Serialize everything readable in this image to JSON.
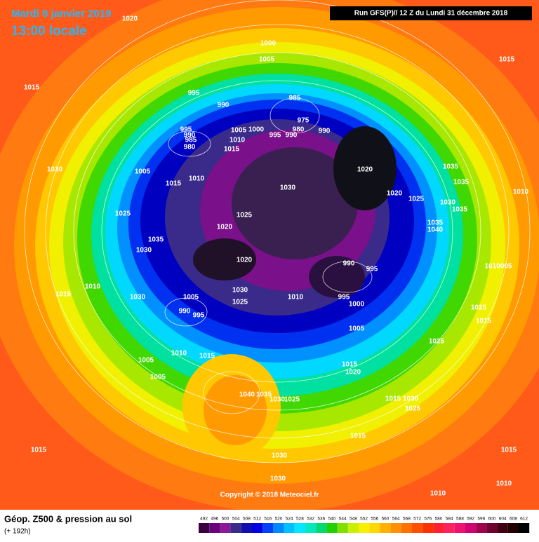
{
  "header": {
    "date": "Mardi 8 janvier 2019",
    "time": "13:00 locale",
    "run": "Run GFS(P)// 12 Z du Lundi 31 décembre 2018"
  },
  "footer": {
    "title": "Géop. Z500 & pression au sol",
    "lead": "(+ 192h)",
    "copyright": "Copyright © 2018 Meteociel.fr"
  },
  "legend": {
    "values": [
      492,
      496,
      500,
      504,
      508,
      512,
      516,
      520,
      524,
      528,
      532,
      536,
      540,
      544,
      548,
      552,
      556,
      560,
      564,
      568,
      572,
      576,
      580,
      584,
      588,
      592,
      596,
      600,
      604,
      608,
      612
    ]
  },
  "isobar_labels": [
    "1020",
    "1000",
    "1005",
    "1015",
    "1015",
    "995",
    "985",
    "990",
    "975",
    "980",
    "990",
    "995",
    "990",
    "985",
    "980",
    "1005",
    "1000",
    "995",
    "990",
    "1010",
    "1015",
    "1030",
    "1005",
    "1020",
    "1035",
    "1015",
    "1010",
    "1030",
    "1035",
    "1010",
    "1020",
    "1025",
    "1030",
    "1035",
    "1025",
    "1025",
    "1035",
    "1040",
    "1020",
    "1035",
    "1030",
    "1020",
    "990",
    "995",
    "1010005",
    "1015",
    "1010",
    "1030",
    "1005",
    "1030",
    "1010",
    "995",
    "1000",
    "1025",
    "990",
    "995",
    "1025",
    "1015",
    "1005",
    "1025",
    "1005",
    "1010",
    "1015",
    "1005",
    "1015",
    "1020",
    "1040",
    "1035",
    "1030",
    "1025",
    "1015",
    "1030",
    "1025",
    "1015",
    "1015",
    "1030",
    "1015",
    "1030",
    "1010",
    "1010"
  ]
}
